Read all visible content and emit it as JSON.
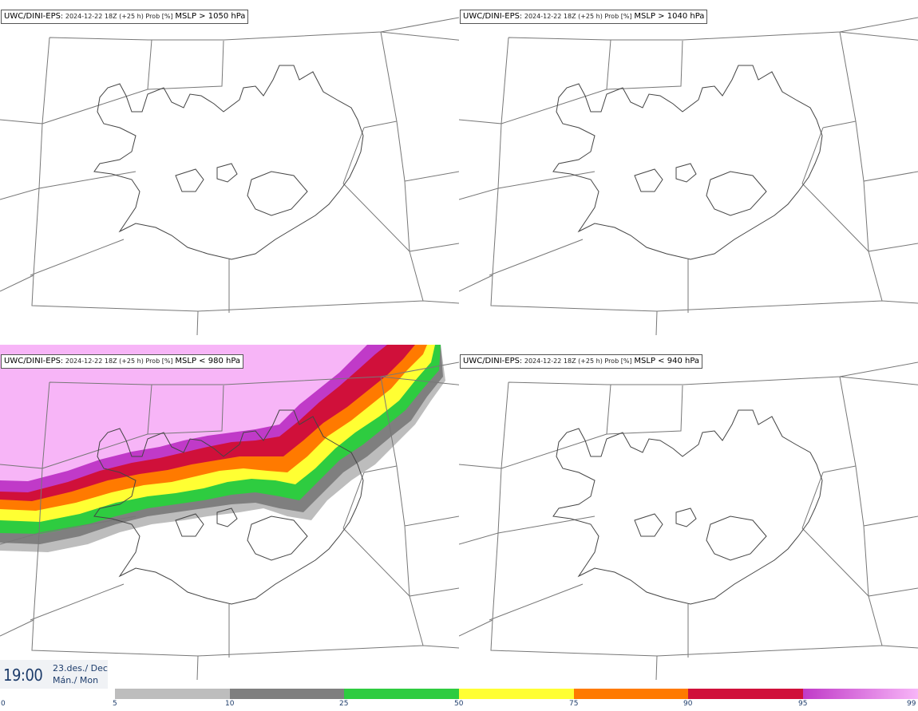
{
  "panels": [
    {
      "model": "UWC/DINI-EPS",
      "run": "2024-12-22 18Z (+25 h) Prob [%]",
      "variable": "MSLP > 1050 hPa",
      "field": false
    },
    {
      "model": "UWC/DINI-EPS",
      "run": "2024-12-22 18Z (+25 h) Prob [%]",
      "variable": "MSLP > 1040 hPa",
      "field": false
    },
    {
      "model": "UWC/DINI-EPS",
      "run": "2024-12-22 18Z (+25 h) Prob [%]",
      "variable": "MSLP < 980 hPa",
      "field": true
    },
    {
      "model": "UWC/DINI-EPS",
      "run": "2024-12-22 18Z (+25 h) Prob [%]",
      "variable": "MSLP < 940 hPa",
      "field": false
    }
  ],
  "valid_time": {
    "hour": "19:00",
    "date": "23.des./ Dec",
    "day": "Mán./ Mon"
  },
  "colorbar": {
    "ticks": [
      "0",
      "5",
      "10",
      "25",
      "50",
      "75",
      "90",
      "95",
      "99"
    ],
    "colors": [
      "#bdbdbd",
      "#7f7f7f",
      "#2ecc40",
      "#ffff33",
      "#ff7a00",
      "#d0103a",
      "#c03ac8",
      "#f7b5f7"
    ]
  }
}
